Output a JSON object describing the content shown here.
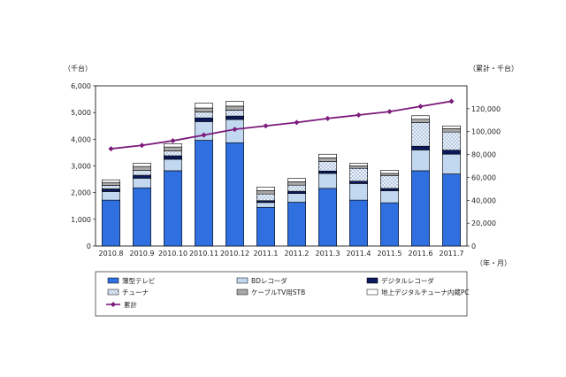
{
  "chart_data": {
    "type": "bar",
    "stacked": true,
    "title": "",
    "ylabel_left": "（千台）",
    "ylabel_right": "（累計・千台）",
    "xlabel": "（年・月）",
    "categories": [
      "2010.8",
      "2010.9",
      "2010.10",
      "2010.11",
      "2010.12",
      "2011.1",
      "2011.2",
      "2011.3",
      "2011.4",
      "2011.5",
      "2011.6",
      "2011.7"
    ],
    "ylim_left": [
      0,
      6000
    ],
    "yticks_left": [
      "0",
      "1,000",
      "2,000",
      "3,000",
      "4,000",
      "5,000",
      "6,000"
    ],
    "ylim_right": [
      0,
      140000
    ],
    "yticks_right": [
      "0",
      "20,000",
      "40,000",
      "60,000",
      "80,000",
      "100,000",
      "120,000"
    ],
    "series": [
      {
        "name": "薄型テレビ",
        "color": "#2f6fdf",
        "pattern": "solid",
        "values": [
          1720,
          2180,
          2820,
          3960,
          3870,
          1450,
          1640,
          2160,
          1720,
          1620,
          2820,
          2700
        ]
      },
      {
        "name": "BDレコーダ",
        "color": "#c2d8f0",
        "pattern": "solid",
        "values": [
          320,
          360,
          430,
          700,
          870,
          180,
          330,
          560,
          620,
          450,
          780,
          740
        ]
      },
      {
        "name": "デジタルレコーダ",
        "color": "#0a1a5c",
        "pattern": "solid",
        "values": [
          100,
          110,
          130,
          140,
          130,
          70,
          80,
          90,
          90,
          90,
          140,
          150
        ]
      },
      {
        "name": "チューナ",
        "color": "#eaf2fb",
        "pattern": "dots",
        "values": [
          130,
          180,
          180,
          220,
          220,
          250,
          230,
          350,
          480,
          470,
          880,
          680
        ]
      },
      {
        "name": "ケーブルTV用STB",
        "color": "#a8a8a8",
        "pattern": "solid",
        "values": [
          110,
          150,
          150,
          150,
          150,
          130,
          130,
          140,
          90,
          90,
          130,
          130
        ]
      },
      {
        "name": "地上デジタルチューナ内蔵PC",
        "color": "#ffffff",
        "pattern": "outline",
        "values": [
          100,
          120,
          120,
          180,
          180,
          130,
          120,
          140,
          100,
          110,
          130,
          100
        ]
      }
    ],
    "line_series": {
      "name": "累計",
      "color": "#7b1a7b",
      "axis": "right",
      "values": [
        85000,
        88000,
        92000,
        97000,
        102000,
        105000,
        108000,
        111500,
        114500,
        117500,
        122000,
        126500
      ]
    },
    "grid": false,
    "legend_position": "bottom"
  }
}
